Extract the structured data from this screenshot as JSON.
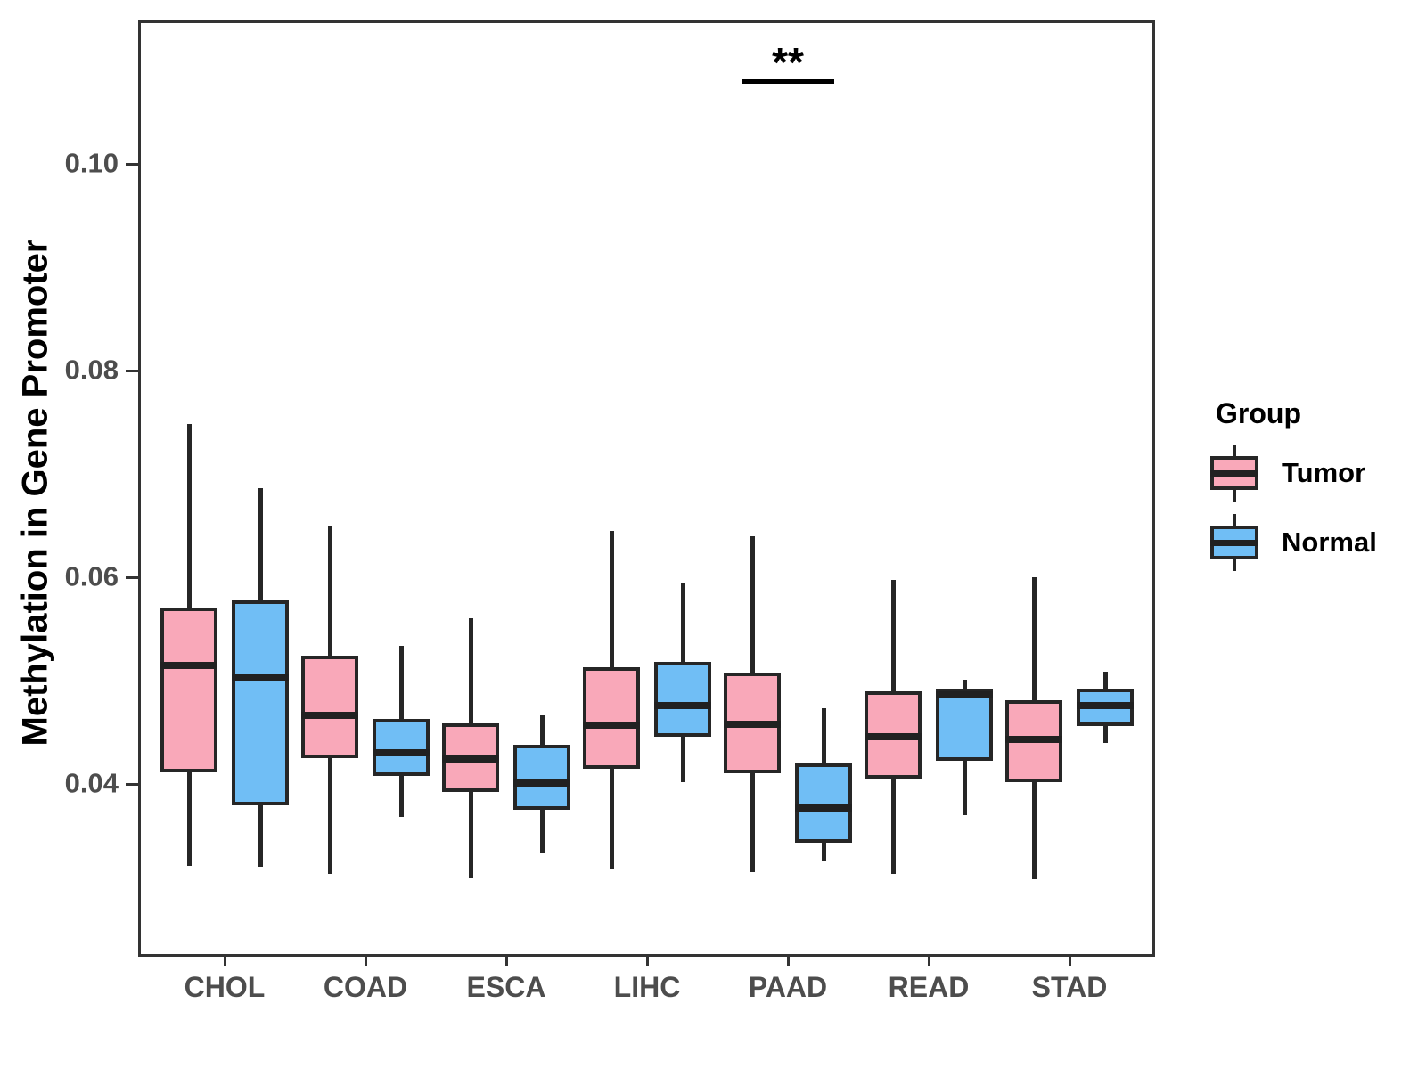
{
  "chart_data": {
    "type": "boxplot",
    "title": "",
    "xlabel": "",
    "ylabel": "Methylation in Gene Promoter",
    "categories": [
      "CHOL",
      "COAD",
      "ESCA",
      "LIHC",
      "PAAD",
      "READ",
      "STAD"
    ],
    "groups": [
      {
        "name": "Tumor",
        "color": "#F9A8B9"
      },
      {
        "name": "Normal",
        "color": "#70BEF5"
      }
    ],
    "y_ticks": [
      {
        "value": 0.04,
        "label": "0.04"
      },
      {
        "value": 0.06,
        "label": "0.06"
      },
      {
        "value": 0.08,
        "label": "0.08"
      },
      {
        "value": 0.1,
        "label": "0.10"
      }
    ],
    "ylim": [
      0.023,
      0.115
    ],
    "grid": false,
    "legend_position": "right",
    "boxes": [
      {
        "category": "CHOL",
        "group": "Tumor",
        "min": 0.0321,
        "q1": 0.0411,
        "median": 0.0515,
        "q3": 0.0571,
        "max": 0.0748
      },
      {
        "category": "CHOL",
        "group": "Normal",
        "min": 0.032,
        "q1": 0.0379,
        "median": 0.0503,
        "q3": 0.0578,
        "max": 0.0686
      },
      {
        "category": "COAD",
        "group": "Tumor",
        "min": 0.0313,
        "q1": 0.0425,
        "median": 0.0466,
        "q3": 0.0524,
        "max": 0.0649
      },
      {
        "category": "COAD",
        "group": "Normal",
        "min": 0.0368,
        "q1": 0.0408,
        "median": 0.043,
        "q3": 0.0463,
        "max": 0.0534
      },
      {
        "category": "ESCA",
        "group": "Tumor",
        "min": 0.0309,
        "q1": 0.0392,
        "median": 0.0424,
        "q3": 0.0459,
        "max": 0.056
      },
      {
        "category": "ESCA",
        "group": "Normal",
        "min": 0.0333,
        "q1": 0.0375,
        "median": 0.0401,
        "q3": 0.0438,
        "max": 0.0466
      },
      {
        "category": "LIHC",
        "group": "Tumor",
        "min": 0.0317,
        "q1": 0.0415,
        "median": 0.0457,
        "q3": 0.0513,
        "max": 0.0645
      },
      {
        "category": "LIHC",
        "group": "Normal",
        "min": 0.0402,
        "q1": 0.0446,
        "median": 0.0476,
        "q3": 0.0518,
        "max": 0.0595
      },
      {
        "category": "PAAD",
        "group": "Tumor",
        "min": 0.0315,
        "q1": 0.041,
        "median": 0.0458,
        "q3": 0.0508,
        "max": 0.064
      },
      {
        "category": "PAAD",
        "group": "Normal",
        "min": 0.0326,
        "q1": 0.0343,
        "median": 0.0377,
        "q3": 0.042,
        "max": 0.0473
      },
      {
        "category": "READ",
        "group": "Tumor",
        "min": 0.0313,
        "q1": 0.0405,
        "median": 0.0446,
        "q3": 0.049,
        "max": 0.0597
      },
      {
        "category": "READ",
        "group": "Normal",
        "min": 0.037,
        "q1": 0.0422,
        "median": 0.0486,
        "q3": 0.0492,
        "max": 0.0501
      },
      {
        "category": "STAD",
        "group": "Tumor",
        "min": 0.0308,
        "q1": 0.0402,
        "median": 0.0443,
        "q3": 0.0481,
        "max": 0.06
      },
      {
        "category": "STAD",
        "group": "Normal",
        "min": 0.044,
        "q1": 0.0456,
        "median": 0.0476,
        "q3": 0.0492,
        "max": 0.0509
      }
    ],
    "significance": {
      "label": "**",
      "category": "PAAD",
      "between": [
        "Tumor",
        "Normal"
      ],
      "line_y": 0.108
    }
  },
  "legend": {
    "title": "Group",
    "items": [
      {
        "label": "Tumor",
        "color": "#F9A8B9"
      },
      {
        "label": "Normal",
        "color": "#70BEF5"
      }
    ]
  },
  "colors": {
    "box_border": "#262626",
    "median_line": "#212121",
    "axis": "#333333",
    "tick_text": "#4d4d4d",
    "text": "#000000",
    "background": "#ffffff"
  }
}
